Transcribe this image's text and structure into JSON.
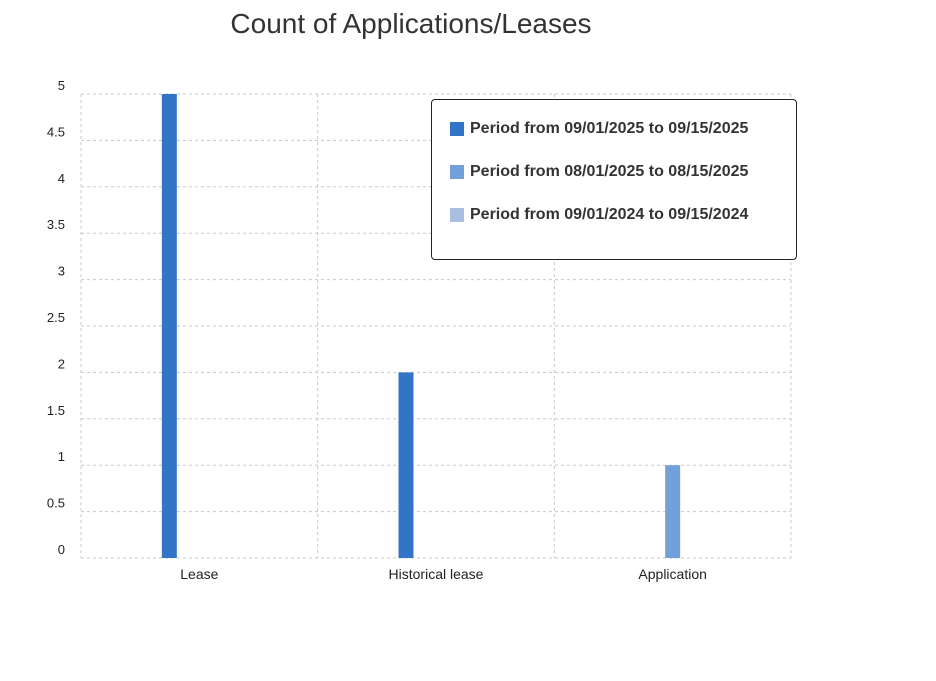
{
  "chart_data": {
    "type": "bar",
    "title": "Count of Applications/Leases",
    "categories": [
      "Lease",
      "Historical lease",
      "Application"
    ],
    "series": [
      {
        "name": "Period from 09/01/2025 to 09/15/2025",
        "color": "#3474c7",
        "values": [
          5,
          2,
          0
        ]
      },
      {
        "name": "Period from 08/01/2025 to 08/15/2025",
        "color": "#72a0db",
        "values": [
          0,
          0,
          1
        ]
      },
      {
        "name": "Period from 09/01/2024 to 09/15/2024",
        "color": "#a9bfe0",
        "values": [
          0,
          0,
          0
        ]
      }
    ],
    "ylim": [
      0,
      5
    ],
    "yticks": [
      "0",
      "0.5",
      "1",
      "1.5",
      "2",
      "2.5",
      "3",
      "3.5",
      "4",
      "4.5",
      "5"
    ],
    "grid": true,
    "legend_position": "top-right"
  }
}
